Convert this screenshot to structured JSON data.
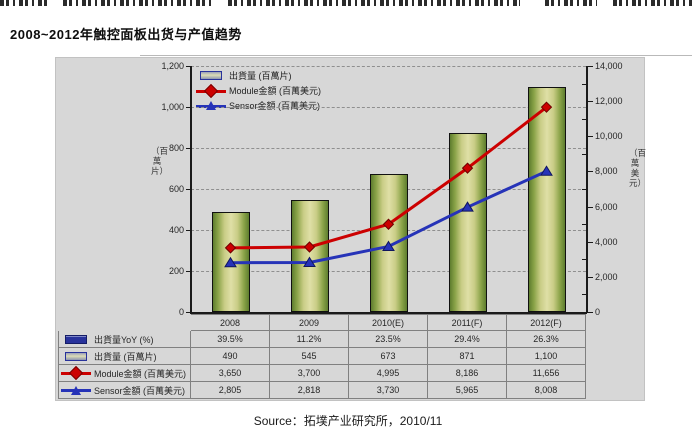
{
  "page": {
    "title": "2008~2012年触控面板出货与产值趋势",
    "source": "Source：拓墣产业研究所，2010/11"
  },
  "chart_data": {
    "type": "combo",
    "title": "2008~2012年触控面板出货与产值趋势",
    "categories": [
      "2008",
      "2009",
      "2010(E)",
      "2011(F)",
      "2012(F)"
    ],
    "series": [
      {
        "name": "出貨量YoY (%)",
        "type": "table-only",
        "values_text": [
          "39.5%",
          "11.2%",
          "23.5%",
          "29.4%",
          "26.3%"
        ]
      },
      {
        "name": "出貨量 (百萬片)",
        "type": "bar",
        "axis": "left",
        "values": [
          490,
          545,
          673,
          871,
          1100
        ],
        "values_text": [
          "490",
          "545",
          "673",
          "871",
          "1,100"
        ]
      },
      {
        "name": "Module金額 (百萬美元)",
        "type": "line",
        "axis": "right",
        "values": [
          3650,
          3700,
          4995,
          8186,
          11656
        ],
        "values_text": [
          "3,650",
          "3,700",
          "4,995",
          "8,186",
          "11,656"
        ]
      },
      {
        "name": "Sensor金額 (百萬美元)",
        "type": "line",
        "axis": "right",
        "values": [
          2805,
          2818,
          3730,
          5965,
          8008
        ],
        "values_text": [
          "2,805",
          "2,818",
          "3,730",
          "5,965",
          "8,008"
        ]
      }
    ],
    "left_axis": {
      "title": "（百萬片）",
      "min": 0,
      "max": 1200,
      "tick_labels": [
        "0",
        "200",
        "400",
        "600",
        "800",
        "1,000",
        "1,200"
      ],
      "tick_values": [
        0,
        200,
        400,
        600,
        800,
        1000,
        1200
      ]
    },
    "right_axis": {
      "title": "（百萬美元）",
      "min": 0,
      "max": 14000,
      "tick_labels": [
        "0",
        "2,000",
        "4,000",
        "6,000",
        "8,000",
        "10,000",
        "12,000",
        "14,000"
      ],
      "tick_values": [
        0,
        2000,
        4000,
        6000,
        8000,
        10000,
        12000,
        14000
      ]
    },
    "legend": [
      {
        "label": "出貨量 (百萬片)",
        "marker": "bar-swatch"
      },
      {
        "label": "Module金額 (百萬美元)",
        "marker": "red-diamond-line"
      },
      {
        "label": "Sensor金額 (百萬美元)",
        "marker": "blue-triangle-line"
      }
    ],
    "grid": "horizontal-dashed",
    "legend_position": "top-left-inside",
    "colors": {
      "bar_edge": "#5e7d2e",
      "bar_center": "#dfdfa6",
      "module_line": "#cc0000",
      "sensor_line": "#2633b8",
      "yoy_swatch": "#28329b",
      "plot_bg": "#d7d7d7"
    }
  },
  "table": {
    "header_labels": [
      "2008",
      "2009",
      "2010(E)",
      "2011(F)",
      "2012(F)"
    ],
    "rows": [
      {
        "label": "出貨量YoY (%)",
        "marker": "navy-bar",
        "cells": [
          "39.5%",
          "11.2%",
          "23.5%",
          "29.4%",
          "26.3%"
        ]
      },
      {
        "label": "出貨量 (百萬片)",
        "marker": "khaki-bar",
        "cells": [
          "490",
          "545",
          "673",
          "871",
          "1,100"
        ]
      },
      {
        "label": "Module金額 (百萬美元)",
        "marker": "red-diamond",
        "cells": [
          "3,650",
          "3,700",
          "4,995",
          "8,186",
          "11,656"
        ]
      },
      {
        "label": "Sensor金額 (百萬美元)",
        "marker": "blue-triangle",
        "cells": [
          "2,805",
          "2,818",
          "3,730",
          "5,965",
          "8,008"
        ]
      }
    ]
  }
}
